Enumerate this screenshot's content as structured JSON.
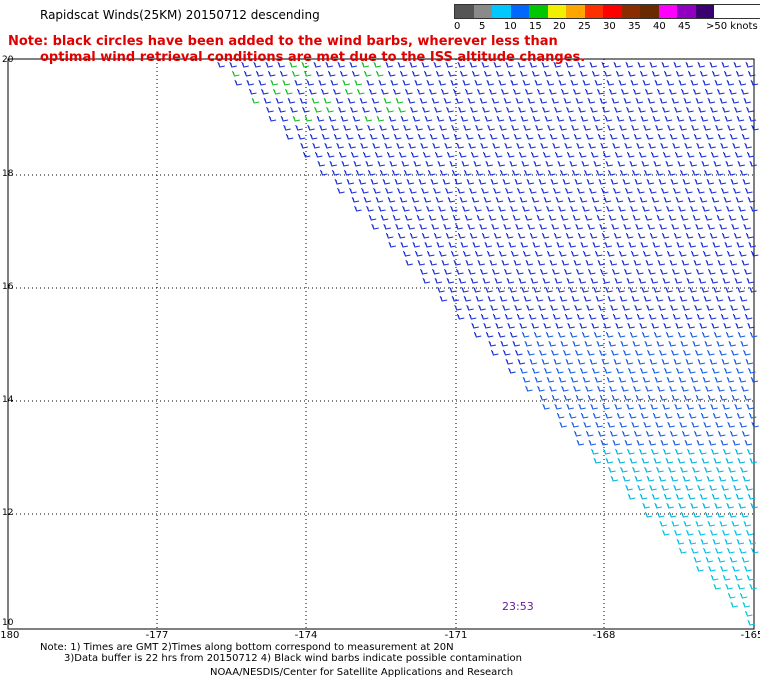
{
  "title": "Rapidscat Winds(25KM) 20150712 descending",
  "note": {
    "line1": "Note: black circles have been added to the wind barbs, wherever less than",
    "line2": "optimal wind retrieval conditions are met due to the ISS altitude changes."
  },
  "legend": {
    "labels": [
      "0",
      "5",
      "10",
      "15",
      "20",
      "25",
      "30",
      "35",
      "40",
      "45",
      ">50 knots"
    ],
    "colors": [
      "#555555",
      "#8a8a8a",
      "#00c8ff",
      "#0068ff",
      "#00c800",
      "#f0f000",
      "#ffa500",
      "#ff3000",
      "#ff0000",
      "#8b2c00",
      "#6a2a00",
      "#ff00ff",
      "#9000c0",
      "#3a0070"
    ]
  },
  "axes": {
    "lon_labels": [
      "-180",
      "-177",
      "-174",
      "-171",
      "-168",
      "-165"
    ],
    "lat_labels": [
      "20",
      "18",
      "16",
      "14",
      "12",
      "10"
    ]
  },
  "time_label": "23:53",
  "footnote": {
    "line1": "Note: 1) Times are GMT 2)Times along bottom correspond to measurement at 20N",
    "line2": "3)Data buffer is 22 hrs from 20150712 4) Black wind barbs indicate possible contamination"
  },
  "credit": "NOAA/NESDIS/Center for Satellite Applications and Research"
}
